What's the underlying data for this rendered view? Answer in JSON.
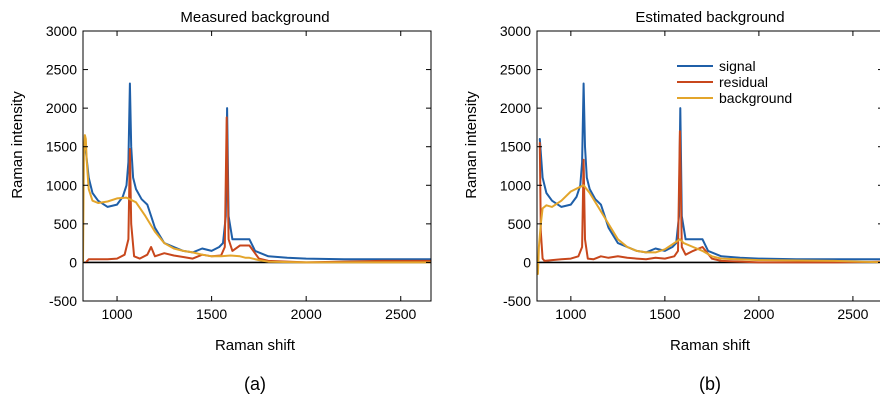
{
  "colors": {
    "signal": "#1f5fa8",
    "residual": "#c8471c",
    "background": "#e3a52b",
    "zero_line": "#000000"
  },
  "chart_data": [
    {
      "type": "line",
      "title": "Measured background",
      "caption": "(a)",
      "xlabel": "Raman shift",
      "ylabel": "Raman intensity",
      "xlim": [
        820,
        2660
      ],
      "ylim": [
        -500,
        3000
      ],
      "xticks": [
        1000,
        1500,
        2000,
        2500
      ],
      "yticks": [
        -500,
        0,
        500,
        1000,
        1500,
        2000,
        2500,
        3000
      ],
      "grid": false,
      "legend": "none",
      "series": [
        {
          "key": "signal",
          "x": [
            835,
            850,
            870,
            900,
            950,
            1000,
            1030,
            1050,
            1060,
            1068,
            1075,
            1085,
            1100,
            1130,
            1160,
            1180,
            1200,
            1250,
            1300,
            1350,
            1400,
            1450,
            1500,
            1540,
            1560,
            1575,
            1582,
            1590,
            1610,
            1650,
            1700,
            1730,
            1800,
            1900,
            2000,
            2200,
            2400,
            2660
          ],
          "y": [
            1450,
            1100,
            900,
            800,
            720,
            750,
            850,
            1000,
            1300,
            2320,
            1500,
            1100,
            950,
            820,
            750,
            600,
            450,
            250,
            200,
            150,
            130,
            180,
            150,
            200,
            250,
            600,
            2000,
            600,
            300,
            300,
            300,
            150,
            80,
            60,
            50,
            40,
            40,
            40
          ]
        },
        {
          "key": "residual",
          "x": [
            835,
            850,
            900,
            950,
            1000,
            1040,
            1060,
            1068,
            1075,
            1090,
            1120,
            1160,
            1180,
            1200,
            1250,
            1300,
            1350,
            1400,
            1450,
            1500,
            1550,
            1570,
            1580,
            1590,
            1610,
            1650,
            1700,
            1750,
            1800,
            2000,
            2400,
            2660
          ],
          "y": [
            0,
            40,
            40,
            40,
            50,
            100,
            300,
            1470,
            500,
            80,
            50,
            100,
            200,
            80,
            120,
            90,
            70,
            50,
            100,
            80,
            90,
            200,
            1880,
            300,
            150,
            220,
            220,
            50,
            20,
            0,
            20,
            20
          ]
        },
        {
          "key": "background",
          "x": [
            820,
            825,
            830,
            835,
            840,
            850,
            870,
            900,
            950,
            1000,
            1050,
            1100,
            1150,
            1200,
            1250,
            1300,
            1350,
            1400,
            1450,
            1500,
            1550,
            1600,
            1650,
            1680,
            1700,
            1750,
            1800,
            2000,
            2200,
            2400,
            2660
          ],
          "y": [
            0,
            1400,
            1650,
            1600,
            1300,
            950,
            800,
            770,
            790,
            830,
            840,
            780,
            600,
            400,
            250,
            180,
            150,
            130,
            100,
            80,
            80,
            90,
            80,
            60,
            60,
            30,
            10,
            0,
            0,
            0,
            0
          ]
        }
      ]
    },
    {
      "type": "line",
      "title": "Estimated background",
      "caption": "(b)",
      "xlabel": "Raman shift",
      "ylabel": "Raman intensity",
      "xlim": [
        820,
        2660
      ],
      "ylim": [
        -500,
        3000
      ],
      "xticks": [
        1000,
        1500,
        2000,
        2500
      ],
      "yticks": [
        -500,
        0,
        500,
        1000,
        1500,
        2000,
        2500,
        3000
      ],
      "grid": false,
      "legend": "top-right",
      "legend_entries": [
        "signal",
        "residual",
        "background"
      ],
      "series": [
        {
          "key": "signal",
          "x": [
            835,
            850,
            870,
            900,
            950,
            1000,
            1030,
            1050,
            1060,
            1068,
            1075,
            1085,
            1100,
            1130,
            1160,
            1180,
            1200,
            1250,
            1300,
            1350,
            1400,
            1450,
            1500,
            1540,
            1560,
            1575,
            1582,
            1590,
            1610,
            1650,
            1700,
            1730,
            1800,
            1900,
            2000,
            2200,
            2400,
            2660
          ],
          "y": [
            1600,
            1100,
            900,
            800,
            720,
            750,
            850,
            1000,
            1300,
            2320,
            1500,
            1100,
            950,
            820,
            750,
            600,
            450,
            250,
            200,
            150,
            130,
            180,
            150,
            200,
            250,
            600,
            2000,
            600,
            300,
            300,
            300,
            150,
            80,
            60,
            50,
            40,
            40,
            40
          ]
        },
        {
          "key": "residual",
          "x": [
            835,
            840,
            850,
            860,
            900,
            950,
            1000,
            1040,
            1060,
            1068,
            1075,
            1090,
            1120,
            1160,
            1200,
            1250,
            1300,
            1350,
            1400,
            1450,
            1500,
            1550,
            1570,
            1580,
            1590,
            1610,
            1650,
            1700,
            1750,
            1800,
            2000,
            2400,
            2660
          ],
          "y": [
            1550,
            400,
            50,
            20,
            30,
            40,
            50,
            80,
            200,
            1330,
            300,
            50,
            40,
            80,
            60,
            80,
            60,
            50,
            40,
            60,
            50,
            80,
            150,
            1700,
            200,
            100,
            150,
            200,
            50,
            20,
            0,
            0,
            10
          ]
        },
        {
          "key": "background",
          "x": [
            825,
            830,
            840,
            850,
            870,
            900,
            950,
            1000,
            1050,
            1068,
            1100,
            1150,
            1200,
            1250,
            1300,
            1350,
            1400,
            1450,
            1500,
            1550,
            1580,
            1600,
            1650,
            1700,
            1750,
            1800,
            2000,
            2400,
            2660
          ],
          "y": [
            -150,
            200,
            500,
            700,
            740,
            720,
            800,
            920,
            980,
            1000,
            900,
            700,
            500,
            300,
            200,
            150,
            130,
            130,
            170,
            250,
            300,
            250,
            200,
            150,
            80,
            50,
            30,
            20,
            0
          ]
        }
      ]
    }
  ]
}
